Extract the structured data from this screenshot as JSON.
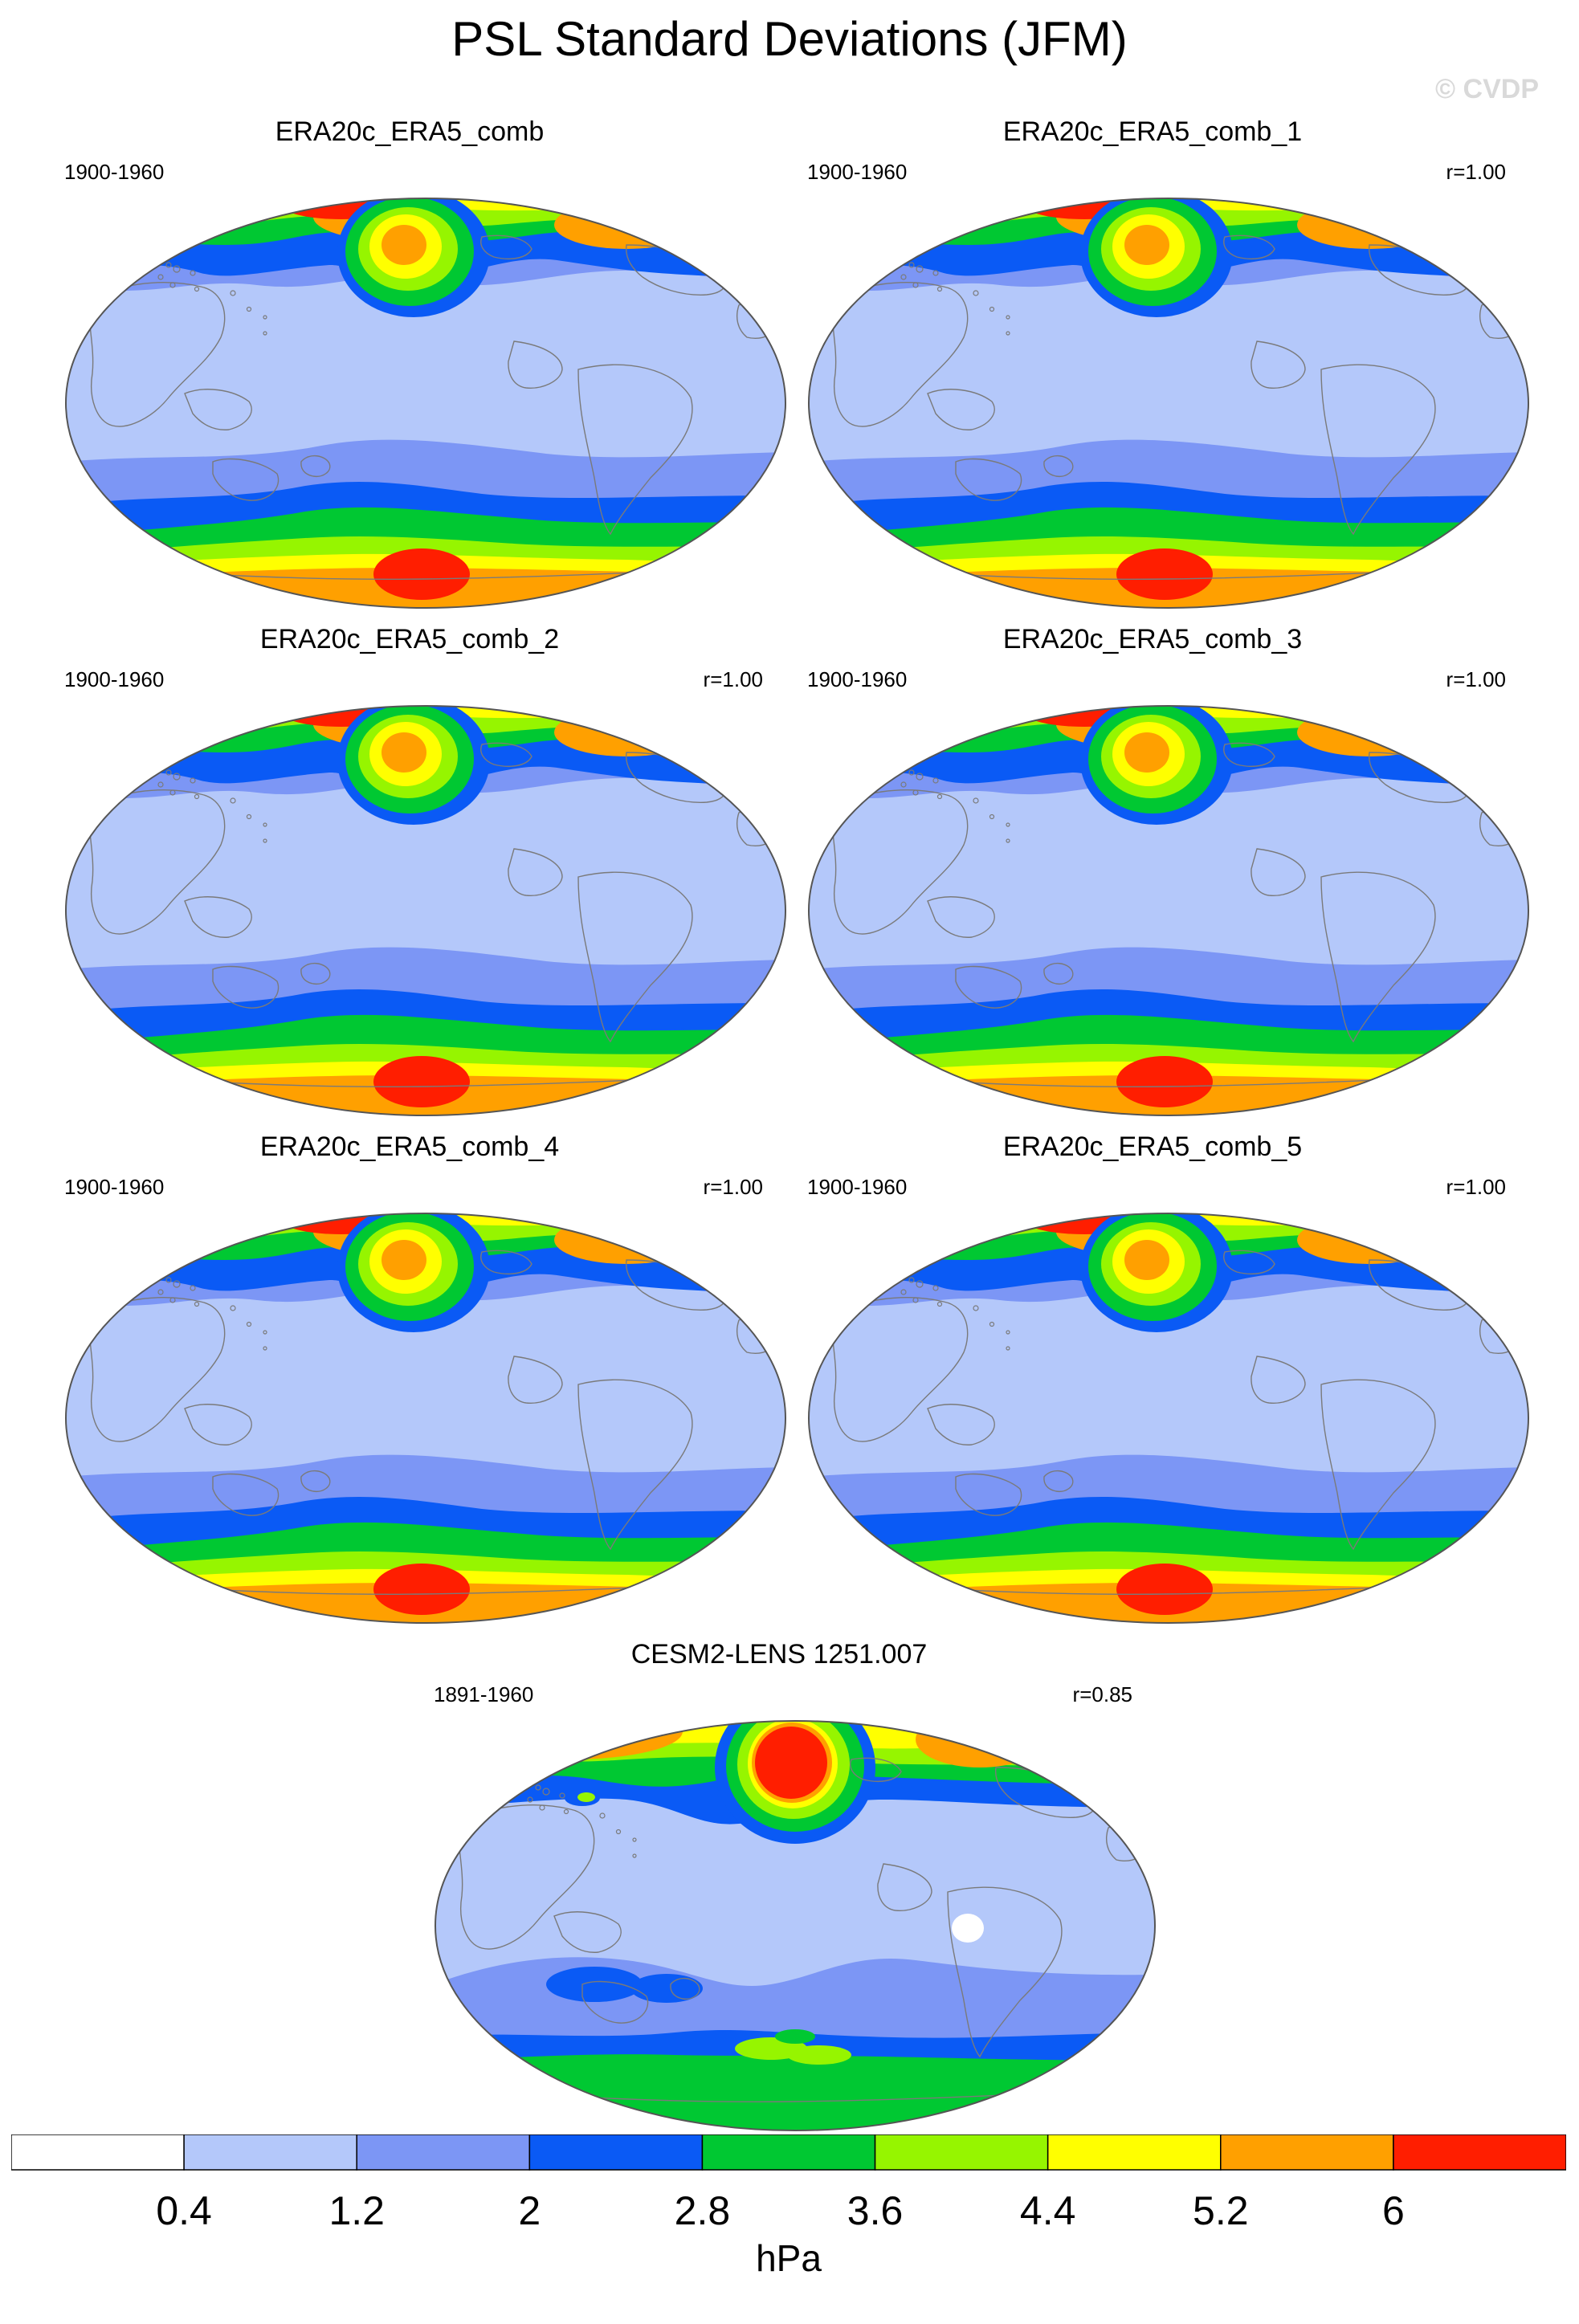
{
  "title": "PSL Standard Deviations (JFM)",
  "watermark": "© CVDP",
  "palette": [
    "#ffffff",
    "#b4c8fa",
    "#7c96f5",
    "#0a5af5",
    "#00c832",
    "#96f500",
    "#ffff00",
    "#ffa000",
    "#ff1e00"
  ],
  "map_style": {
    "coastline_color": "#7a7a7a",
    "outline_color": "#555555"
  },
  "panels": [
    {
      "title": "ERA20c_ERA5_comb",
      "period": "1900-1960",
      "corr": ""
    },
    {
      "title": "ERA20c_ERA5_comb_1",
      "period": "1900-1960",
      "corr": "r=1.00"
    },
    {
      "title": "ERA20c_ERA5_comb_2",
      "period": "1900-1960",
      "corr": "r=1.00"
    },
    {
      "title": "ERA20c_ERA5_comb_3",
      "period": "1900-1960",
      "corr": "r=1.00"
    },
    {
      "title": "ERA20c_ERA5_comb_4",
      "period": "1900-1960",
      "corr": "r=1.00"
    },
    {
      "title": "ERA20c_ERA5_comb_5",
      "period": "1900-1960",
      "corr": "r=1.00"
    },
    {
      "title": "CESM2-LENS 1251.007",
      "period": "1891-1960",
      "corr": "r=0.85"
    }
  ],
  "colorbar": {
    "ticks": [
      "0.4",
      "1.2",
      "2",
      "2.8",
      "3.6",
      "4.4",
      "5.2",
      "6"
    ],
    "unit": "hPa"
  }
}
